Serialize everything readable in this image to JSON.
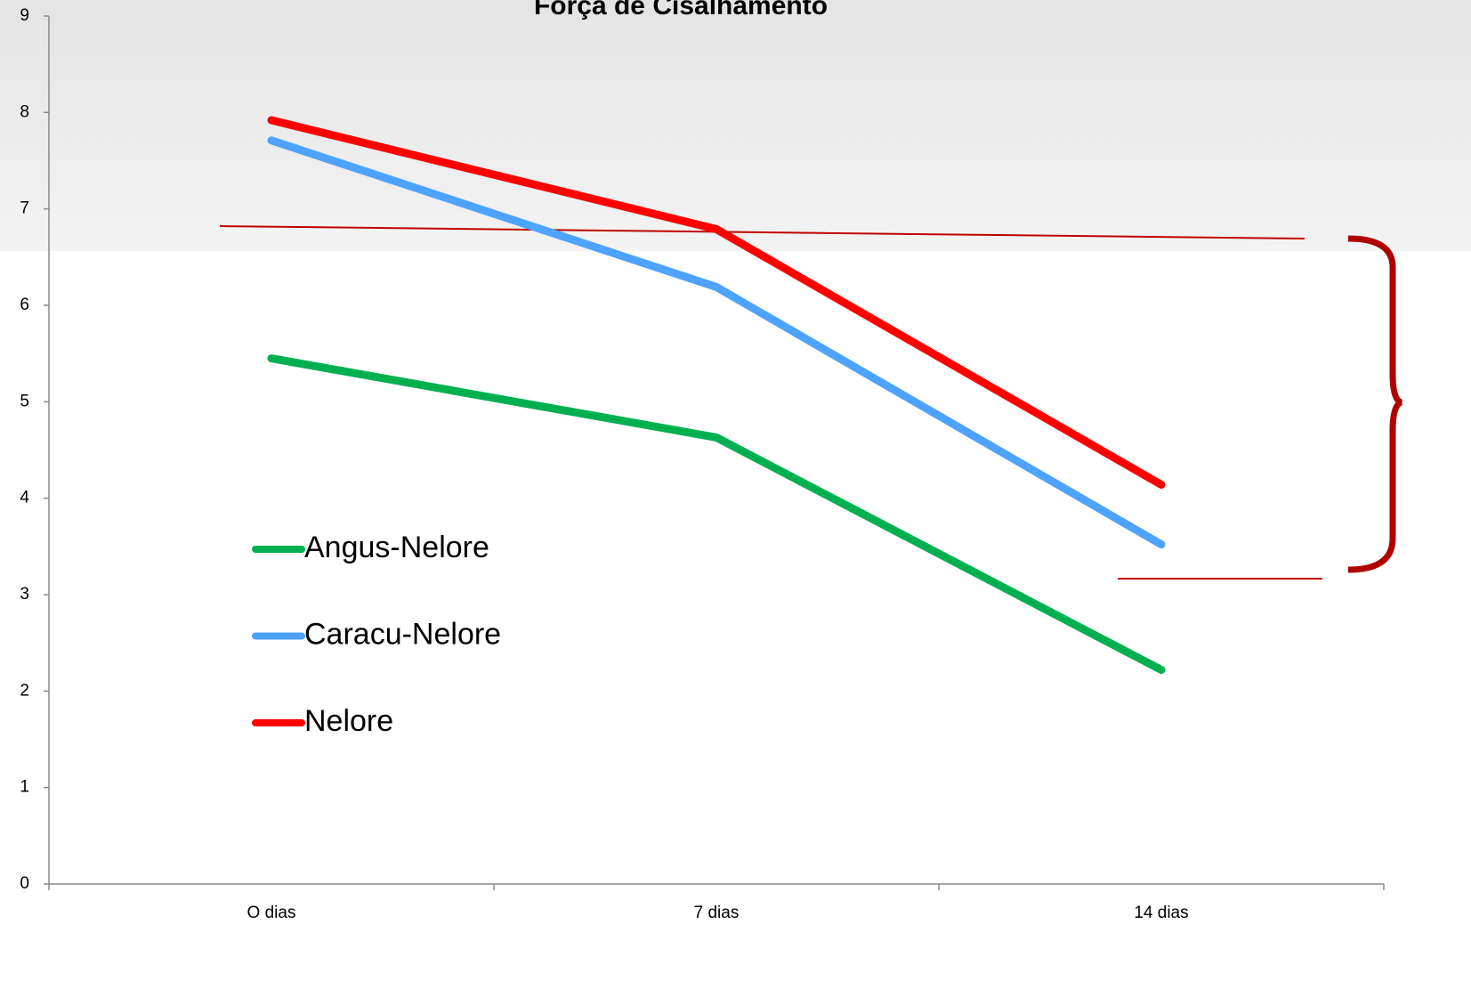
{
  "chart_data": {
    "type": "line",
    "title": "Força de Cisalhamento",
    "categories": [
      "O dias",
      "7 dias",
      "14 dias"
    ],
    "series": [
      {
        "name": "Angus-Nelore",
        "color": "#00b050",
        "values": [
          5.45,
          4.63,
          2.22
        ]
      },
      {
        "name": "Caracu-Nelore",
        "color": "#4da3ff",
        "values": [
          7.71,
          6.19,
          3.52
        ]
      },
      {
        "name": "Nelore",
        "color": "#ff0000",
        "values": [
          7.92,
          6.79,
          4.14
        ]
      }
    ],
    "ylim": [
      0,
      9
    ],
    "yticks": [
      0,
      1,
      2,
      3,
      4,
      5,
      6,
      7,
      8,
      9
    ],
    "grid": false,
    "legend_position": "center left"
  }
}
